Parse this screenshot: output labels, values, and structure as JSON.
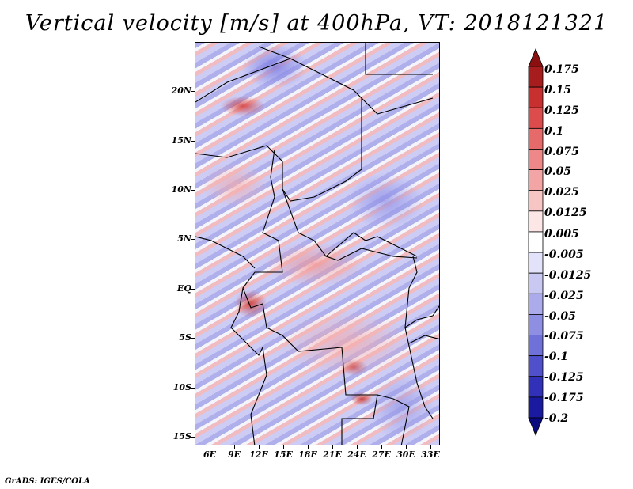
{
  "title": "Vertical velocity [m/s] at 400hPa, VT: 2018121321",
  "map": {
    "y_ticks": [
      "20N",
      "15N",
      "10N",
      "5N",
      "EQ",
      "5S",
      "10S",
      "15S"
    ],
    "x_ticks": [
      "6E",
      "9E",
      "12E",
      "15E",
      "18E",
      "21E",
      "24E",
      "27E",
      "30E",
      "33E"
    ]
  },
  "colorbar": {
    "labels": [
      "0.175",
      "0.15",
      "0.125",
      "0.1",
      "0.075",
      "0.05",
      "0.025",
      "0.0125",
      "0.005",
      "-0.005",
      "-0.0125",
      "-0.025",
      "-0.05",
      "-0.075",
      "-0.1",
      "-0.125",
      "-0.175",
      "-0.2"
    ],
    "colors": [
      "#8b0f0f",
      "#a71c1c",
      "#c83030",
      "#dc4c4c",
      "#e66a6a",
      "#ee8888",
      "#f3a5a5",
      "#f8c5c5",
      "#fce6e6",
      "#ffffff",
      "#e2e2fa",
      "#c8c8f2",
      "#ababeb",
      "#8e8ee3",
      "#7070d9",
      "#5050cc",
      "#3030b8",
      "#1a1aa0",
      "#0a0a80"
    ]
  },
  "credit": "GrADS: IGES/COLA"
}
